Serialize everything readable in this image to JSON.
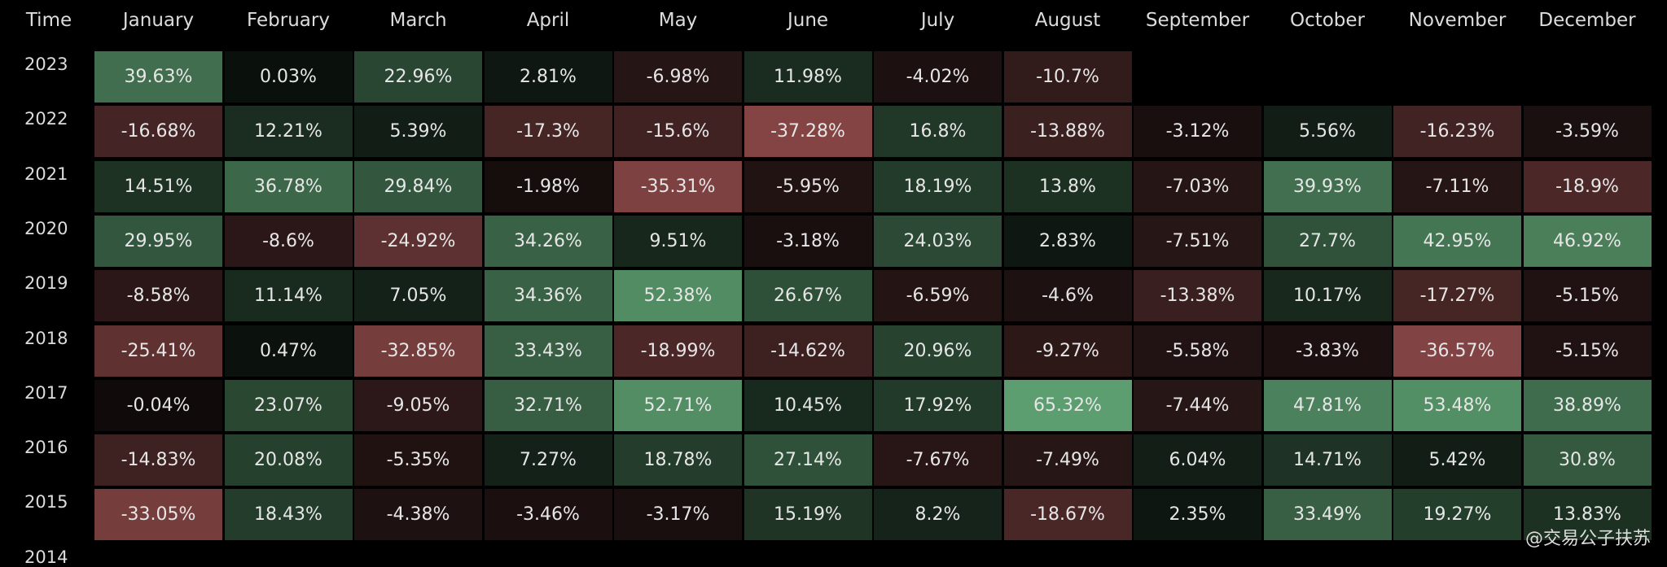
{
  "table": {
    "header": [
      "Time",
      "January",
      "February",
      "March",
      "April",
      "May",
      "June",
      "July",
      "August",
      "September",
      "October",
      "November",
      "December"
    ],
    "rows": [
      {
        "year": "2023",
        "cells": [
          "39.63%",
          "0.03%",
          "22.96%",
          "2.81%",
          "-6.98%",
          "11.98%",
          "-4.02%",
          "-10.7%"
        ]
      },
      {
        "year": "2022",
        "cells": [
          "-16.68%",
          "12.21%",
          "5.39%",
          "-17.3%",
          "-15.6%",
          "-37.28%",
          "16.8%",
          "-13.88%",
          "-3.12%",
          "5.56%",
          "-16.23%",
          "-3.59%"
        ]
      },
      {
        "year": "2021",
        "cells": [
          "14.51%",
          "36.78%",
          "29.84%",
          "-1.98%",
          "-35.31%",
          "-5.95%",
          "18.19%",
          "13.8%",
          "-7.03%",
          "39.93%",
          "-7.11%",
          "-18.9%"
        ]
      },
      {
        "year": "2020",
        "cells": [
          "29.95%",
          "-8.6%",
          "-24.92%",
          "34.26%",
          "9.51%",
          "-3.18%",
          "24.03%",
          "2.83%",
          "-7.51%",
          "27.7%",
          "42.95%",
          "46.92%"
        ]
      },
      {
        "year": "2019",
        "cells": [
          "-8.58%",
          "11.14%",
          "7.05%",
          "34.36%",
          "52.38%",
          "26.67%",
          "-6.59%",
          "-4.6%",
          "-13.38%",
          "10.17%",
          "-17.27%",
          "-5.15%"
        ]
      },
      {
        "year": "2018",
        "cells": [
          "-25.41%",
          "0.47%",
          "-32.85%",
          "33.43%",
          "-18.99%",
          "-14.62%",
          "20.96%",
          "-9.27%",
          "-5.58%",
          "-3.83%",
          "-36.57%",
          "-5.15%"
        ]
      },
      {
        "year": "2017",
        "cells": [
          "-0.04%",
          "23.07%",
          "-9.05%",
          "32.71%",
          "52.71%",
          "10.45%",
          "17.92%",
          "65.32%",
          "-7.44%",
          "47.81%",
          "53.48%",
          "38.89%"
        ]
      },
      {
        "year": "2016",
        "cells": [
          "-14.83%",
          "20.08%",
          "-5.35%",
          "7.27%",
          "18.78%",
          "27.14%",
          "-7.67%",
          "-7.49%",
          "6.04%",
          "14.71%",
          "5.42%",
          "30.8%"
        ]
      },
      {
        "year": "2015",
        "cells": [
          "-33.05%",
          "18.43%",
          "-4.38%",
          "-3.46%",
          "-3.17%",
          "15.19%",
          "8.2%",
          "-18.67%",
          "2.35%",
          "33.49%",
          "19.27%",
          "13.83%"
        ]
      },
      {
        "year": "2014"
      }
    ]
  },
  "watermark": "@交易公子扶苏"
}
